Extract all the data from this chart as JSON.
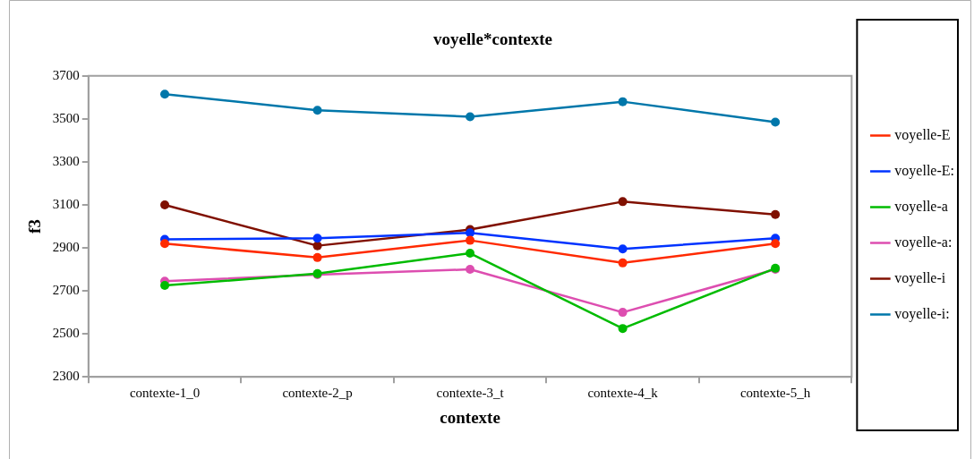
{
  "chart_data": {
    "type": "line",
    "title": "voyelle*contexte",
    "xlabel": "contexte",
    "ylabel": "f3",
    "categories": [
      "contexte-1_0",
      "contexte-2_p",
      "contexte-3_t",
      "contexte-4_k",
      "contexte-5_h"
    ],
    "series": [
      {
        "name": "voyelle-E",
        "color": "#ff2a00",
        "values": [
          2920,
          2855,
          2935,
          2830,
          2920
        ]
      },
      {
        "name": "voyelle-E:",
        "color": "#0033ff",
        "values": [
          2940,
          2945,
          2970,
          2895,
          2945
        ]
      },
      {
        "name": "voyelle-a",
        "color": "#00bb00",
        "values": [
          2725,
          2780,
          2875,
          2525,
          2805
        ]
      },
      {
        "name": "voyelle-a:",
        "color": "#dd4eb0",
        "values": [
          2745,
          2775,
          2800,
          2600,
          2800
        ]
      },
      {
        "name": "voyelle-i",
        "color": "#801000",
        "values": [
          3100,
          2910,
          2985,
          3115,
          3055
        ]
      },
      {
        "name": "voyelle-i:",
        "color": "#0077aa",
        "values": [
          3615,
          3540,
          3510,
          3580,
          3485
        ]
      }
    ],
    "ylim": [
      2300,
      3700
    ],
    "yticks": [
      2300,
      2500,
      2700,
      2900,
      3100,
      3300,
      3500,
      3700
    ],
    "grid": false,
    "legend": "right",
    "marker": "circle",
    "line_style": "solid"
  }
}
